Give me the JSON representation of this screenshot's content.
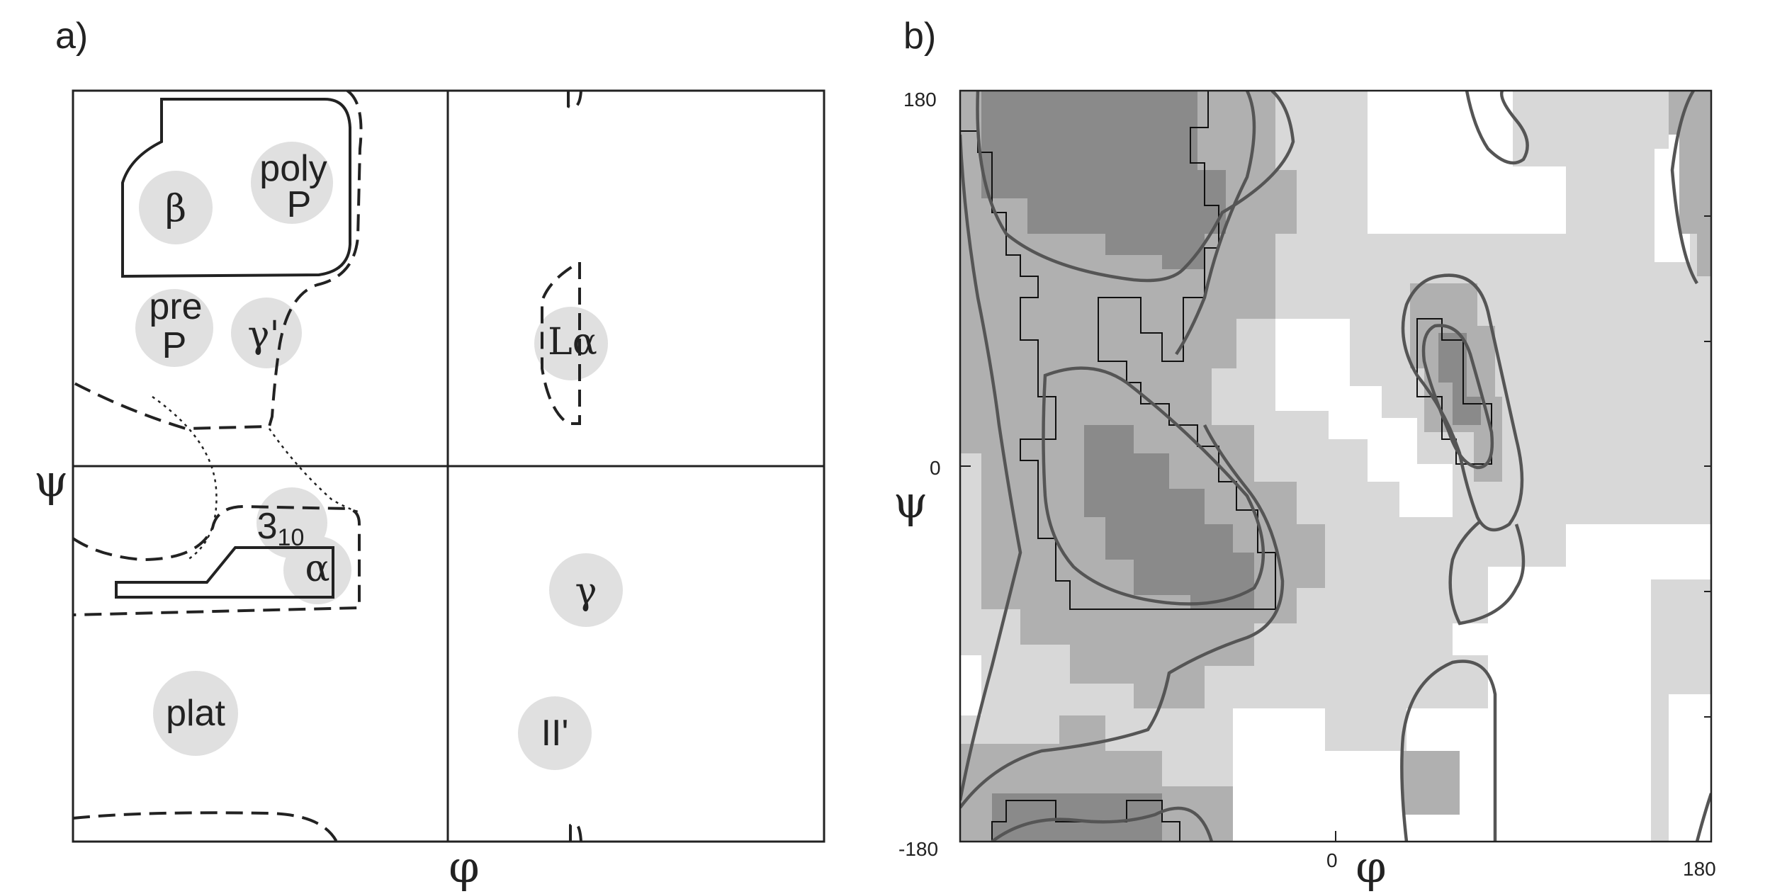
{
  "panel_a": {
    "label": "a)",
    "phi_symbol": "φ",
    "psi_symbol": "ψ",
    "regions": [
      {
        "name": "beta",
        "text": "β"
      },
      {
        "name": "polyp",
        "line1": "poly",
        "line2": "P"
      },
      {
        "name": "prep",
        "line1": "pre",
        "line2": "P"
      },
      {
        "name": "gamma-prime",
        "text": "γ'"
      },
      {
        "name": "l-alpha",
        "text": "Lα"
      },
      {
        "name": "three-ten",
        "base": "3",
        "sub": "10"
      },
      {
        "name": "alpha",
        "text": "α"
      },
      {
        "name": "gamma",
        "text": "γ"
      },
      {
        "name": "plat",
        "text": "plat"
      },
      {
        "name": "ii-prime",
        "text": "II'"
      }
    ]
  },
  "panel_b": {
    "label": "b)",
    "phi_symbol": "φ",
    "psi_symbol": "ψ",
    "x_ticks": [
      "-180",
      "0",
      "180"
    ],
    "y_ticks": [
      "180",
      "0"
    ]
  },
  "colors": {
    "region_circle": "#e0e0e0",
    "shade_light": "#d8d8d8",
    "shade_medium": "#b0b0b0",
    "shade_dark": "#8a8a8a",
    "contour": "#555555"
  }
}
